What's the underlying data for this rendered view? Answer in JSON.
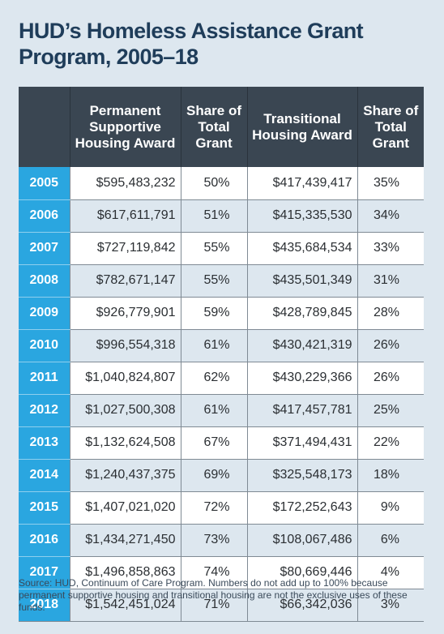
{
  "title": "HUD’s Homeless Assistance Grant Program, 2005–18",
  "chart_data": {
    "type": "table",
    "columns": [
      "",
      "Permanent Supportive Housing Award",
      "Share of Total Grant",
      "Transitional Housing Award",
      "Share of Total Grant"
    ],
    "rows": [
      [
        "2005",
        "$595,483,232",
        "50%",
        "$417,439,417",
        "35%"
      ],
      [
        "2006",
        "$617,611,791",
        "51%",
        "$415,335,530",
        "34%"
      ],
      [
        "2007",
        "$727,119,842",
        "55%",
        "$435,684,534",
        "33%"
      ],
      [
        "2008",
        "$782,671,147",
        "55%",
        "$435,501,349",
        "31%"
      ],
      [
        "2009",
        "$926,779,901",
        "59%",
        "$428,789,845",
        "28%"
      ],
      [
        "2010",
        "$996,554,318",
        "61%",
        "$430,421,319",
        "26%"
      ],
      [
        "2011",
        "$1,040,824,807",
        "62%",
        "$430,229,366",
        "26%"
      ],
      [
        "2012",
        "$1,027,500,308",
        "61%",
        "$417,457,781",
        "25%"
      ],
      [
        "2013",
        "$1,132,624,508",
        "67%",
        "$371,494,431",
        "22%"
      ],
      [
        "2014",
        "$1,240,437,375",
        "69%",
        "$325,548,173",
        "18%"
      ],
      [
        "2015",
        "$1,407,021,020",
        "72%",
        "$172,252,643",
        "9%"
      ],
      [
        "2016",
        "$1,434,271,450",
        "73%",
        "$108,067,486",
        "6%"
      ],
      [
        "2017",
        "$1,496,858,863",
        "74%",
        "$80,669,446",
        "4%"
      ],
      [
        "2018",
        "$1,542,451,024",
        "71%",
        "$66,342,036",
        "3%"
      ]
    ]
  },
  "source": "Source: HUD, Continuum of Care Program. Numbers do not add up to 100% because permanent supportive housing and transitional housing are not the exclusive uses of these funds.",
  "colors": {
    "background": "#dde7ef",
    "header": "#3a4652",
    "year_cell": "#2aa6e0",
    "title": "#1f3d5a"
  }
}
